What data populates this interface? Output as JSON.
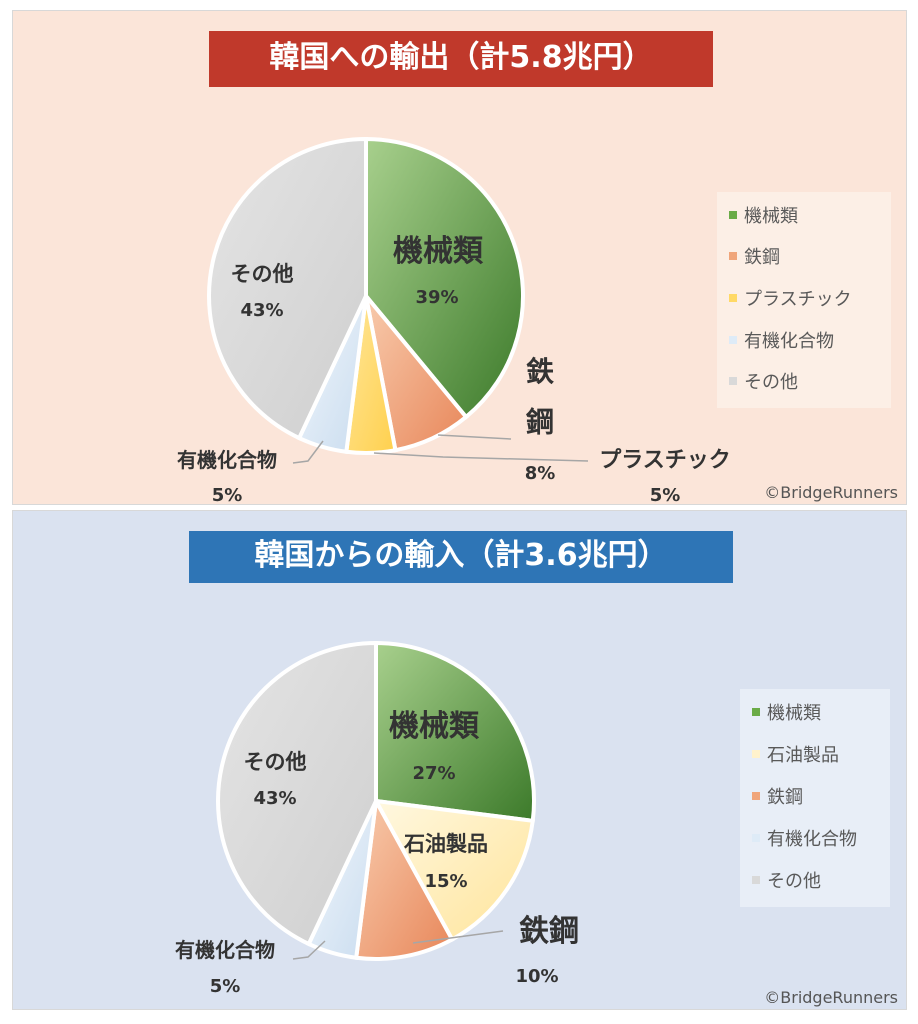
{
  "copyright": "©BridgeRunners",
  "chart_data": [
    {
      "type": "pie",
      "title": "韓国への輸出（計5.8兆円）",
      "categories": [
        "機械類",
        "鉄鋼",
        "プラスチック",
        "有機化合物",
        "その他"
      ],
      "values": [
        39,
        8,
        5,
        5,
        43
      ],
      "unit": "%",
      "value_labels": [
        "39%",
        "8%",
        "5%",
        "5%",
        "43%"
      ],
      "colors": [
        "#6aab47",
        "#f0a57a",
        "#ffd966",
        "#deebf7",
        "#d9d9d9"
      ],
      "legend": {
        "placement": "right",
        "items": [
          "機械類",
          "鉄鋼",
          "プラスチック",
          "有機化合物",
          "その他"
        ]
      }
    },
    {
      "type": "pie",
      "title": "韓国からの輸入（計3.6兆円）",
      "categories": [
        "機械類",
        "石油製品",
        "鉄鋼",
        "有機化合物",
        "その他"
      ],
      "values": [
        27,
        15,
        10,
        5,
        43
      ],
      "unit": "%",
      "value_labels": [
        "27%",
        "15%",
        "10%",
        "5%",
        "43%"
      ],
      "colors": [
        "#6aab47",
        "#fff2cc",
        "#f0a57a",
        "#deebf7",
        "#d9d9d9"
      ],
      "legend": {
        "placement": "right",
        "items": [
          "機械類",
          "石油製品",
          "鉄鋼",
          "有機化合物",
          "その他"
        ]
      }
    }
  ]
}
